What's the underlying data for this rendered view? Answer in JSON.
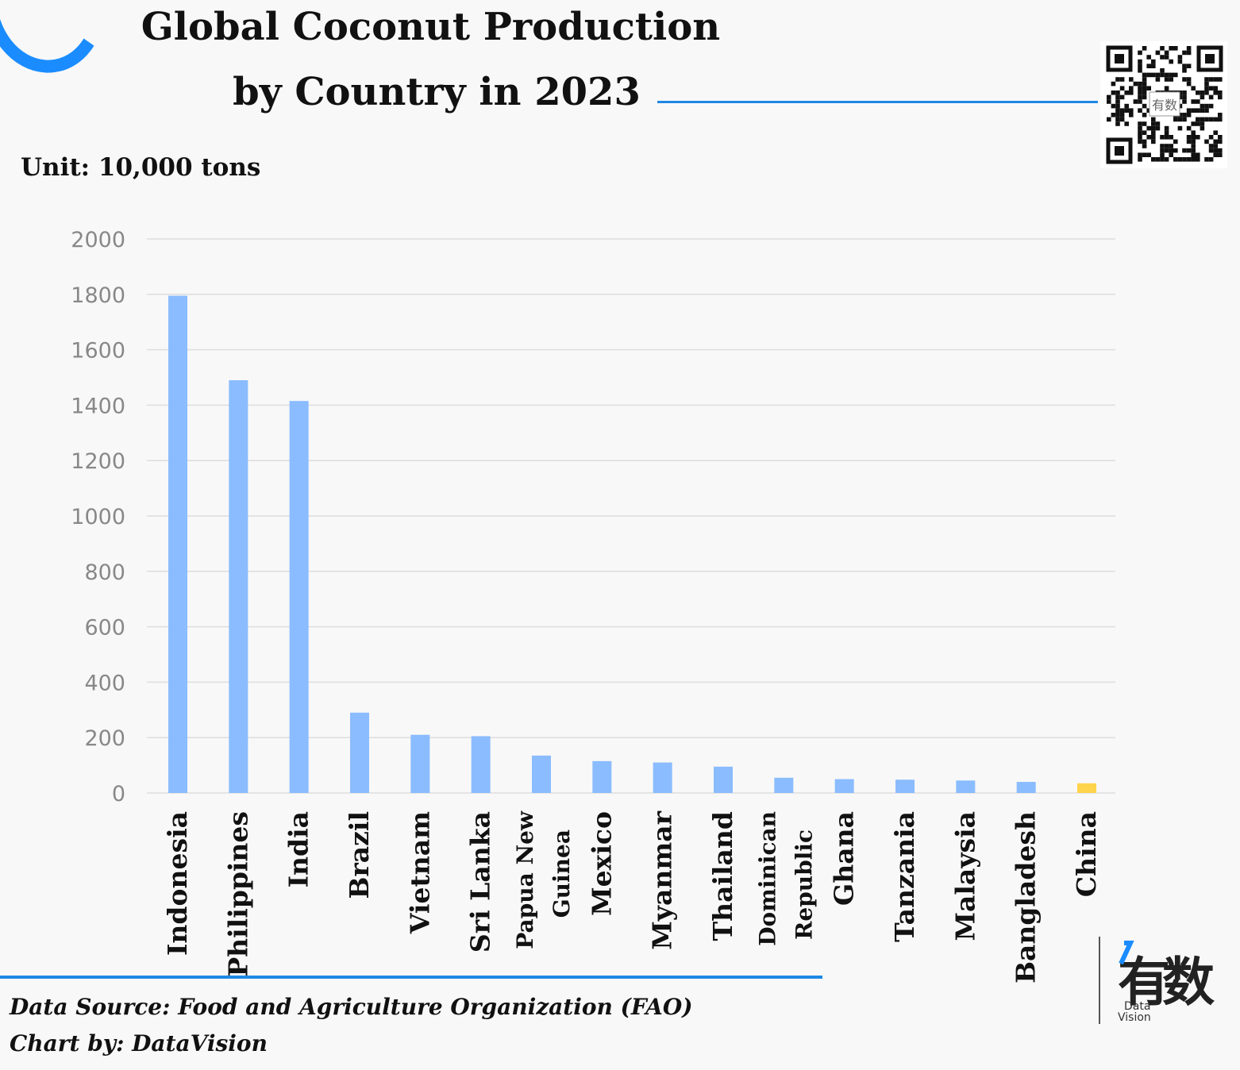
{
  "header": {
    "title_line1": "Global Coconut Production",
    "title_line2": "by Country in 2023",
    "unit": "Unit: 10,000 tons"
  },
  "footer": {
    "source": "Data Source: Food and Agriculture Organization (FAO)",
    "credit": "Chart by: DataVision"
  },
  "logo": {
    "glyph1": "有",
    "glyph2": "数",
    "caption_line1": "Data",
    "caption_line2": "Vision",
    "icon": "datavision-logo-icon"
  },
  "qr": {
    "icon": "qr-code-icon",
    "center_text": "有数"
  },
  "colors": {
    "bar": "#8bbcff",
    "highlight": "#ffd44d",
    "accent": "#1e88e5",
    "grid": "#dddddd",
    "tick": "#888888"
  },
  "chart_data": {
    "type": "bar",
    "title": "Global Coconut Production by Country in 2023",
    "ylabel": "Unit: 10,000 tons",
    "xlabel": "",
    "ylim": [
      0,
      2000
    ],
    "yticks": [
      0,
      200,
      400,
      600,
      800,
      1000,
      1200,
      1400,
      1600,
      1800,
      2000
    ],
    "grid": true,
    "categories": [
      [
        "Indonesia"
      ],
      [
        "Philippines"
      ],
      [
        "India"
      ],
      [
        "Brazil"
      ],
      [
        "Vietnam"
      ],
      [
        "Sri Lanka"
      ],
      [
        "Papua New",
        "Guinea"
      ],
      [
        "Mexico"
      ],
      [
        "Myanmar"
      ],
      [
        "Thailand"
      ],
      [
        "Dominican",
        "Republic"
      ],
      [
        "Ghana"
      ],
      [
        "Tanzania"
      ],
      [
        "Malaysia"
      ],
      [
        "Bangladesh"
      ],
      [
        "China"
      ]
    ],
    "values": [
      1795,
      1490,
      1415,
      290,
      210,
      205,
      135,
      115,
      110,
      95,
      55,
      50,
      48,
      45,
      40,
      35
    ],
    "highlight_category": "China"
  }
}
